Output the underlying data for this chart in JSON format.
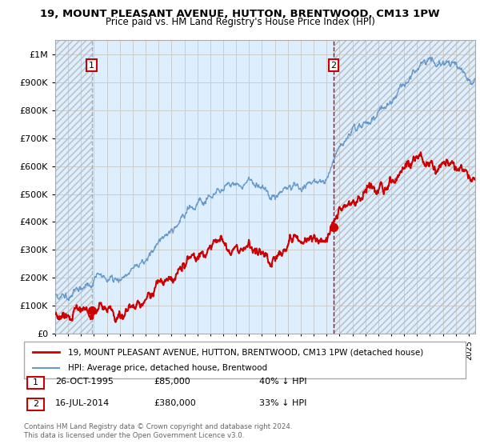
{
  "title": "19, MOUNT PLEASANT AVENUE, HUTTON, BRENTWOOD, CM13 1PW",
  "subtitle": "Price paid vs. HM Land Registry's House Price Index (HPI)",
  "transactions": [
    {
      "date_num": 1995.82,
      "price": 85000,
      "label": "1"
    },
    {
      "date_num": 2014.54,
      "price": 380000,
      "label": "2"
    }
  ],
  "transaction_info": [
    {
      "label": "1",
      "date": "26-OCT-1995",
      "price": "£85,000",
      "note": "40% ↓ HPI"
    },
    {
      "label": "2",
      "date": "16-JUL-2014",
      "price": "£380,000",
      "note": "33% ↓ HPI"
    }
  ],
  "legend_entries": [
    {
      "label": "19, MOUNT PLEASANT AVENUE, HUTTON, BRENTWOOD, CM13 1PW (detached house)",
      "color": "#cc0000",
      "lw": 2
    },
    {
      "label": "HPI: Average price, detached house, Brentwood",
      "color": "#6699cc",
      "lw": 1.5
    }
  ],
  "footnote": "Contains HM Land Registry data © Crown copyright and database right 2024.\nThis data is licensed under the Open Government Licence v3.0.",
  "xmin": 1993,
  "xmax": 2025.5,
  "ymin": 0,
  "ymax": 1050000,
  "hatch_color": "#bbbbbb",
  "grid_color": "#cccccc",
  "bg_color": "#ddeeff",
  "vline1_color": "#aaaaaa",
  "vline2_color": "#cc0000"
}
